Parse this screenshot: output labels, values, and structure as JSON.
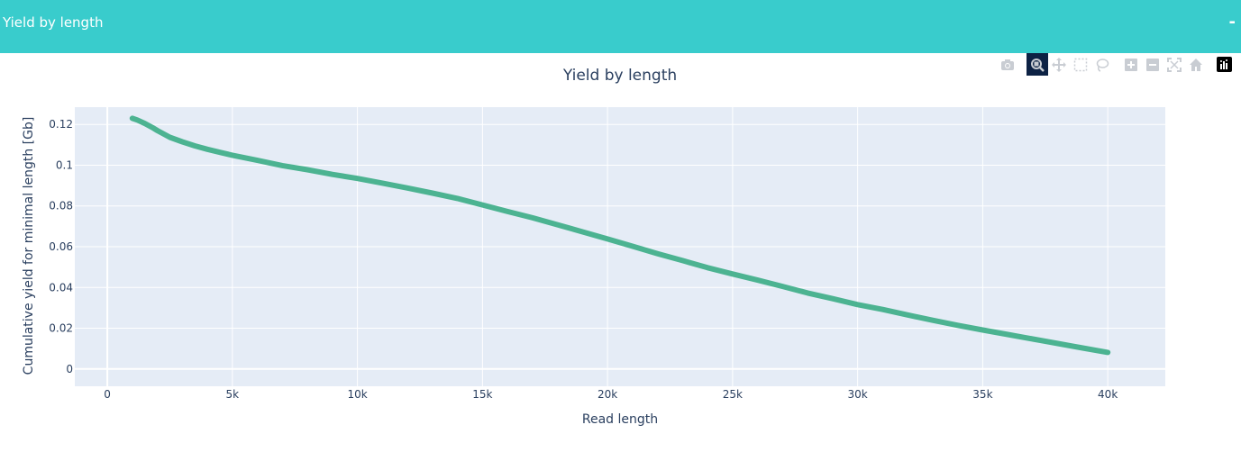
{
  "panel": {
    "title": "Yield by length",
    "collapse_label": "-"
  },
  "modebar": {
    "buttons": [
      "camera-icon",
      "zoom-icon",
      "pan-icon",
      "box-select-icon",
      "lasso-select-icon",
      "zoom-in-icon",
      "zoom-out-icon",
      "autoscale-icon",
      "reset-axes-icon",
      "plotly-logo-icon"
    ],
    "active": "zoom-icon"
  },
  "colors": {
    "header": "#39cccc",
    "line": "#4cb391",
    "plot_bg": "#e5ecf6",
    "text": "#2a3f5f"
  },
  "chart_data": {
    "type": "line",
    "title": "Yield by length",
    "xlabel": "Read length",
    "ylabel": "Cumulative yield for minimal length [Gb]",
    "xlim": [
      -1300,
      42300
    ],
    "ylim": [
      -0.0085,
      0.1285
    ],
    "xticks": [
      0,
      5000,
      10000,
      15000,
      20000,
      25000,
      30000,
      35000,
      40000
    ],
    "xtick_labels": [
      "0",
      "5k",
      "10k",
      "15k",
      "20k",
      "25k",
      "30k",
      "35k",
      "40k"
    ],
    "yticks": [
      0,
      0.02,
      0.04,
      0.06,
      0.08,
      0.1,
      0.12
    ],
    "ytick_labels": [
      "0",
      "0.02",
      "0.04",
      "0.06",
      "0.08",
      "0.1",
      "0.12"
    ],
    "grid": true,
    "series": [
      {
        "x": [
          1000,
          1200,
          1500,
          1800,
          2000,
          2500,
          3000,
          3500,
          4000,
          4500,
          5000,
          6000,
          7000,
          8000,
          9000,
          10000,
          11000,
          12000,
          13000,
          14000,
          15000,
          16000,
          17000,
          18000,
          19000,
          20000,
          21000,
          22000,
          23000,
          24000,
          25000,
          26000,
          27000,
          28000,
          29000,
          30000,
          31000,
          32000,
          33000,
          34000,
          35000,
          36000,
          37000,
          38000,
          39000,
          40000
        ],
        "values": [
          0.123,
          0.1222,
          0.1205,
          0.1185,
          0.117,
          0.1137,
          0.1115,
          0.1095,
          0.1078,
          0.1063,
          0.1049,
          0.1024,
          0.0998,
          0.0978,
          0.0955,
          0.0935,
          0.0912,
          0.0888,
          0.0863,
          0.0837,
          0.0805,
          0.0773,
          0.0742,
          0.0708,
          0.0673,
          0.0638,
          0.0602,
          0.0566,
          0.0532,
          0.0497,
          0.0466,
          0.0436,
          0.0405,
          0.0373,
          0.0345,
          0.0316,
          0.0292,
          0.0265,
          0.0239,
          0.0214,
          0.0191,
          0.0169,
          0.0147,
          0.0125,
          0.0103,
          0.0081
        ]
      }
    ]
  }
}
